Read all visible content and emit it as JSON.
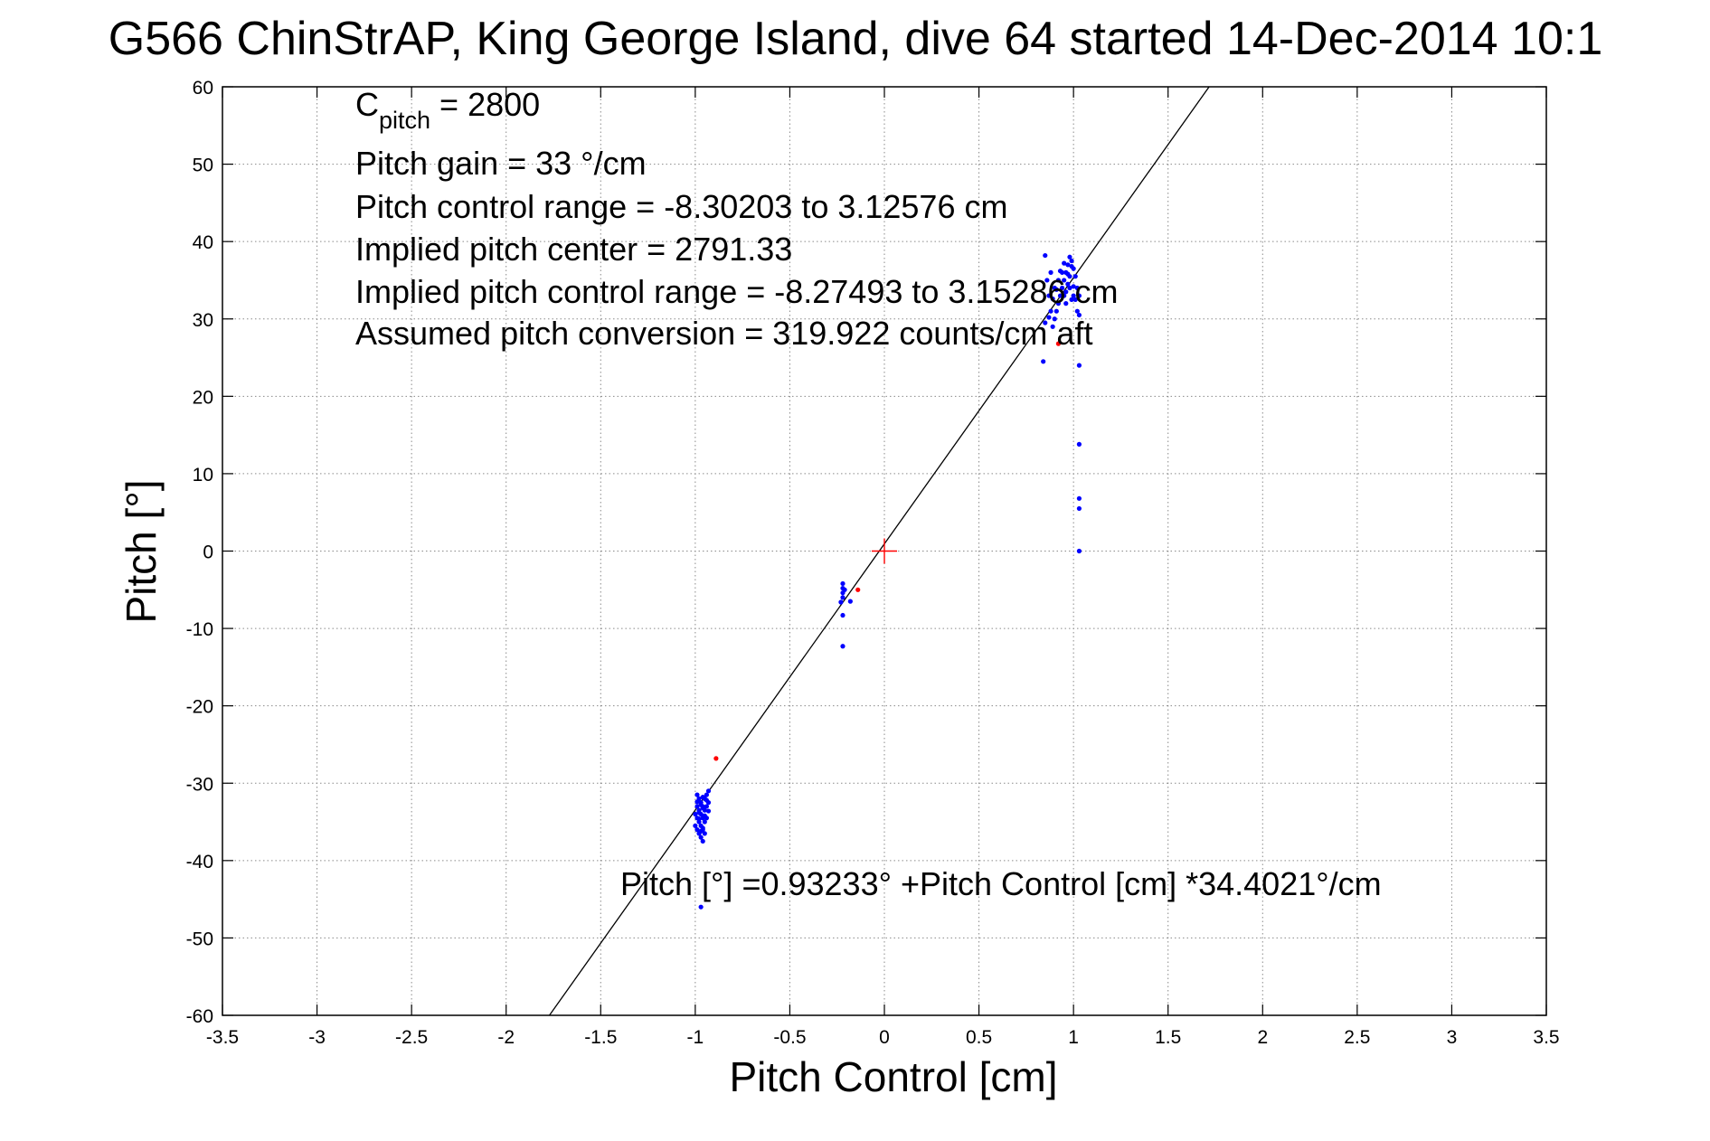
{
  "chart_data": {
    "type": "scatter",
    "title": "G566 ChinStrAP, King George Island, dive 64 started 14-Dec-2014 10:1",
    "xlabel": "Pitch Control [cm]",
    "ylabel": "Pitch [°]",
    "xlim": [
      -3.5,
      3.5
    ],
    "ylim": [
      -60,
      60
    ],
    "xticks": [
      -3.5,
      -3,
      -2.5,
      -2,
      -1.5,
      -1,
      -0.5,
      0,
      0.5,
      1,
      1.5,
      2,
      2.5,
      3,
      3.5
    ],
    "yticks": [
      -60,
      -50,
      -40,
      -30,
      -20,
      -10,
      0,
      10,
      20,
      30,
      40,
      50,
      60
    ],
    "xtick_labels": [
      "-3.5",
      "-3",
      "-2.5",
      "-2",
      "-1.5",
      "-1",
      "-0.5",
      "0",
      "0.5",
      "1",
      "1.5",
      "2",
      "2.5",
      "3",
      "3.5"
    ],
    "ytick_labels": [
      "-60",
      "-50",
      "-40",
      "-30",
      "-20",
      "-10",
      "0",
      "10",
      "20",
      "30",
      "40",
      "50",
      "60"
    ],
    "grid": true,
    "annotations": {
      "c_pitch_base": "C",
      "c_pitch_sub": "pitch",
      "c_pitch_value": " = 2800",
      "pitch_gain": "Pitch gain = 33 °/cm",
      "control_range": "Pitch control range = -8.30203 to 3.12576 cm",
      "implied_center": "Implied pitch center = 2791.33",
      "implied_range": "Implied pitch control range = -8.27493 to 3.15286 cm",
      "assumed_conversion": "Assumed pitch conversion = 319.922 counts/cm aft",
      "fit_equation": "Pitch [°] =0.93233° +Pitch Control [cm] *34.4021°/cm"
    },
    "fit_line": {
      "intercept": 0.93233,
      "slope": 34.4021,
      "color": "#000000"
    },
    "center_marker": {
      "x": 0,
      "y": 0,
      "color": "#ff0000"
    },
    "series": [
      {
        "color": "#0000ff",
        "points": [
          [
            -0.99,
            -31.5
          ],
          [
            -0.98,
            -32
          ],
          [
            -0.97,
            -32.5
          ],
          [
            -0.96,
            -33
          ],
          [
            -0.95,
            -32
          ],
          [
            -0.94,
            -31.5
          ],
          [
            -0.93,
            -31
          ],
          [
            -0.99,
            -33
          ],
          [
            -0.98,
            -33.5
          ],
          [
            -0.97,
            -34
          ],
          [
            -0.96,
            -34.5
          ],
          [
            -0.95,
            -33.5
          ],
          [
            -0.94,
            -33
          ],
          [
            -0.93,
            -32.5
          ],
          [
            -1.0,
            -34
          ],
          [
            -0.99,
            -34.5
          ],
          [
            -0.98,
            -35
          ],
          [
            -0.97,
            -35.5
          ],
          [
            -0.96,
            -36
          ],
          [
            -0.95,
            -35
          ],
          [
            -0.94,
            -34.5
          ],
          [
            -1.0,
            -35.5
          ],
          [
            -0.99,
            -36
          ],
          [
            -0.98,
            -36.5
          ],
          [
            -0.97,
            -37
          ],
          [
            -0.96,
            -37.5
          ],
          [
            -0.95,
            -36.5
          ],
          [
            -0.96,
            -35.8
          ],
          [
            -0.98,
            -33.8
          ],
          [
            -0.97,
            -32.8
          ],
          [
            -0.96,
            -31.8
          ],
          [
            -0.95,
            -34.2
          ],
          [
            -0.94,
            -32.2
          ],
          [
            -0.93,
            -33.6
          ],
          [
            -0.99,
            -32.4
          ],
          [
            -0.98,
            -34.6
          ],
          [
            -0.97,
            -36.2
          ],
          [
            -0.96,
            -33.2
          ],
          [
            -0.97,
            -46.0
          ],
          [
            -0.22,
            -4.2
          ],
          [
            -0.22,
            -4.8
          ],
          [
            -0.22,
            -5.4
          ],
          [
            -0.22,
            -6.0
          ],
          [
            -0.23,
            -6.6
          ],
          [
            -0.21,
            -5.0
          ],
          [
            -0.18,
            -6.5
          ],
          [
            -0.22,
            -8.3
          ],
          [
            -0.22,
            -12.3
          ],
          [
            0.95,
            35
          ],
          [
            0.96,
            36
          ],
          [
            0.97,
            37
          ],
          [
            0.98,
            38
          ],
          [
            0.99,
            37.5
          ],
          [
            1.0,
            36.5
          ],
          [
            1.01,
            35.5
          ],
          [
            0.94,
            34
          ],
          [
            0.95,
            33
          ],
          [
            0.96,
            32
          ],
          [
            0.97,
            34.5
          ],
          [
            0.98,
            35.5
          ],
          [
            0.99,
            36.8
          ],
          [
            1.0,
            34.2
          ],
          [
            0.93,
            33
          ],
          [
            0.92,
            32
          ],
          [
            0.91,
            31
          ],
          [
            0.9,
            30
          ],
          [
            0.89,
            29
          ],
          [
            0.88,
            31
          ],
          [
            0.87,
            33
          ],
          [
            0.86,
            35
          ],
          [
            0.88,
            36
          ],
          [
            0.9,
            34
          ],
          [
            0.92,
            35
          ],
          [
            0.94,
            36
          ],
          [
            0.96,
            33.5
          ],
          [
            0.98,
            34
          ],
          [
            1.0,
            33
          ],
          [
            1.01,
            32.5
          ],
          [
            1.02,
            34
          ],
          [
            1.03,
            33
          ],
          [
            1.02,
            31
          ],
          [
            1.03,
            30.5
          ],
          [
            0.99,
            32.5
          ],
          [
            0.97,
            35.8
          ],
          [
            0.95,
            37.2
          ],
          [
            0.93,
            36.2
          ],
          [
            0.91,
            33.8
          ],
          [
            0.89,
            32.6
          ],
          [
            0.87,
            30.2
          ],
          [
            0.85,
            29.5
          ],
          [
            0.85,
            38.2
          ],
          [
            0.84,
            24.5
          ],
          [
            1.03,
            24.0
          ],
          [
            1.03,
            13.8
          ],
          [
            1.03,
            6.8
          ],
          [
            1.03,
            5.5
          ],
          [
            1.03,
            0
          ]
        ]
      },
      {
        "color": "#ff0000",
        "points": [
          [
            -0.89,
            -26.8
          ],
          [
            -0.14,
            -5.0
          ],
          [
            0.92,
            26.8
          ]
        ]
      }
    ]
  }
}
